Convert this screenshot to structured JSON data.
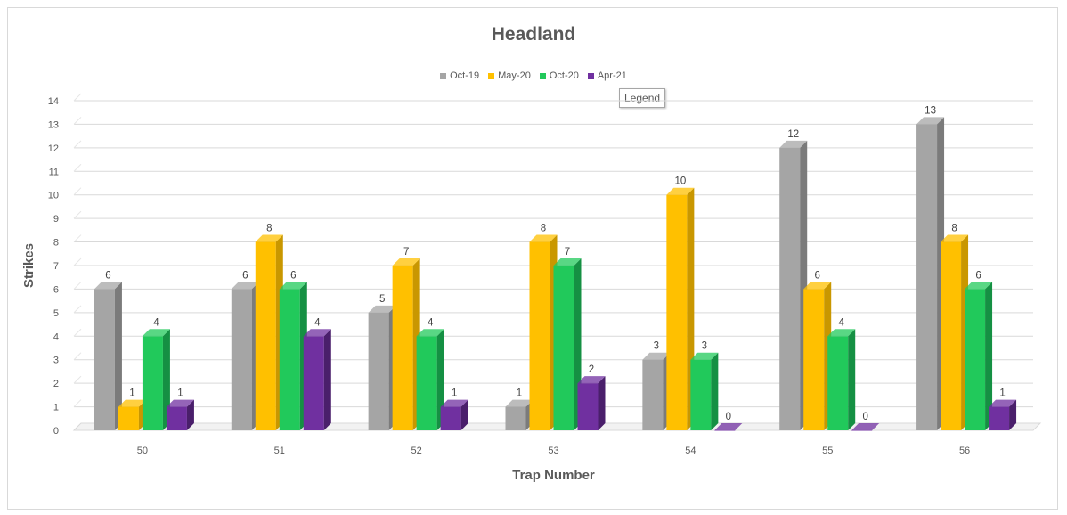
{
  "chart_data": {
    "type": "bar",
    "title": "Headland",
    "xlabel": "Trap Number",
    "ylabel": "Strikes",
    "categories": [
      "50",
      "51",
      "52",
      "53",
      "54",
      "55",
      "56"
    ],
    "series": [
      {
        "name": "Oct-19",
        "color": "#a5a5a5",
        "side": "#7b7b7b",
        "values": [
          6,
          6,
          5,
          1,
          3,
          12,
          13
        ]
      },
      {
        "name": "May-20",
        "color": "#ffc000",
        "side": "#c99700",
        "values": [
          1,
          8,
          7,
          8,
          10,
          6,
          8
        ]
      },
      {
        "name": "Oct-20",
        "color": "#21c95b",
        "side": "#159043",
        "values": [
          4,
          6,
          4,
          7,
          3,
          4,
          6
        ]
      },
      {
        "name": "Apr-21",
        "color": "#7030a0",
        "side": "#4a1f6b",
        "values": [
          1,
          4,
          1,
          2,
          0,
          0,
          1
        ]
      }
    ],
    "ylim": [
      0,
      14
    ],
    "yticks": [
      0,
      1,
      2,
      3,
      4,
      5,
      6,
      7,
      8,
      9,
      10,
      11,
      12,
      13,
      14
    ],
    "grid": true,
    "legend_position": "top"
  },
  "tooltip": {
    "text": "Legend"
  }
}
